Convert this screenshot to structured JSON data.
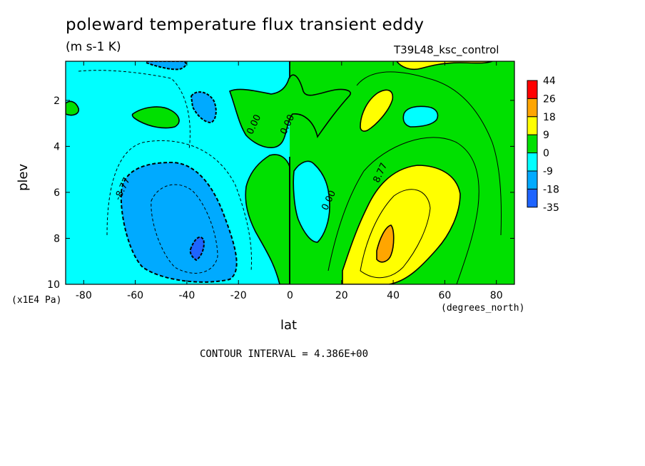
{
  "chart_data": {
    "type": "heatmap",
    "title": "poleward temperature flux transient eddy",
    "units": "(m s-1 K)",
    "run_name": "T39L48_ksc_control",
    "xlabel": "lat",
    "x_units": "(degrees_north)",
    "ylabel": "plev",
    "y_units": "(x1E4 Pa)",
    "xlim": [
      -87,
      87
    ],
    "ylim": [
      0.3,
      10
    ],
    "y_inverted": true,
    "x_ticks": [
      -80,
      -60,
      -40,
      -20,
      0,
      20,
      40,
      60,
      80
    ],
    "x_tick_labels": [
      "-80",
      "-60",
      "-40",
      "-20",
      "0",
      "20",
      "40",
      "60",
      "80"
    ],
    "y_ticks": [
      2,
      4,
      6,
      8,
      10
    ],
    "y_tick_labels": [
      "2",
      "4",
      "6",
      "8",
      "10"
    ],
    "contour_interval_text": "CONTOUR INTERVAL = 4.386E+00",
    "contour_labels": [
      {
        "text": "-8.77",
        "lat": -64,
        "plev": 5.9
      },
      {
        "text": "0.00",
        "lat": -13,
        "plev": 3.1
      },
      {
        "text": "0.00",
        "lat": 0,
        "plev": 3.1
      },
      {
        "text": "0.00",
        "lat": 16,
        "plev": 6.4
      },
      {
        "text": "8.77",
        "lat": 36,
        "plev": 5.2
      }
    ],
    "colorbar": {
      "levels": [
        "44",
        "26",
        "18",
        "9",
        "0",
        "-9",
        "-18",
        "-35"
      ],
      "colors": [
        "#ff0000",
        "#ffa500",
        "#ffff00",
        "#00e000",
        "#00ffff",
        "#00aaff",
        "#1e64ff"
      ]
    }
  },
  "colors": {
    "pos_low": "#00e000",
    "pos_mid": "#ffff00",
    "pos_high": "#ffa500",
    "neg_low": "#00ffff",
    "neg_mid": "#00aaff",
    "neg_high": "#1e64ff"
  }
}
